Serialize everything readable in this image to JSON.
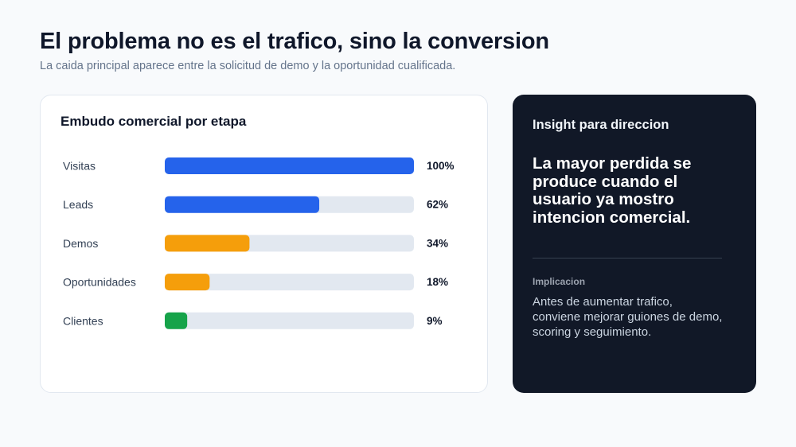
{
  "header": {
    "title": "El problema no es el trafico, sino la conversion",
    "subtitle": "La caida principal aparece entre la solicitud de demo y la oportunidad cualificada."
  },
  "chart_data": {
    "type": "bar",
    "orientation": "horizontal",
    "title": "Embudo comercial por etapa",
    "categories": [
      "Visitas",
      "Leads",
      "Demos",
      "Oportunidades",
      "Clientes"
    ],
    "values": [
      100,
      62,
      34,
      18,
      9
    ],
    "value_labels": [
      "100%",
      "62%",
      "34%",
      "18%",
      "9%"
    ],
    "unit": "%",
    "xlim": [
      0,
      100
    ],
    "bar_colors": [
      "#2563eb",
      "#2563eb",
      "#f59e0b",
      "#f59e0b",
      "#16a34a"
    ],
    "track_color": "#e2e8f0",
    "grid": false,
    "legend": "none"
  },
  "insight": {
    "heading": "Insight para direccion",
    "main": "La mayor perdida se produce cuando el usuario ya mostro intencion comercial.",
    "implication_label": "Implicacion",
    "implication_text": "Antes de aumentar trafico, conviene mejorar guiones de demo, scoring y seguimiento."
  }
}
